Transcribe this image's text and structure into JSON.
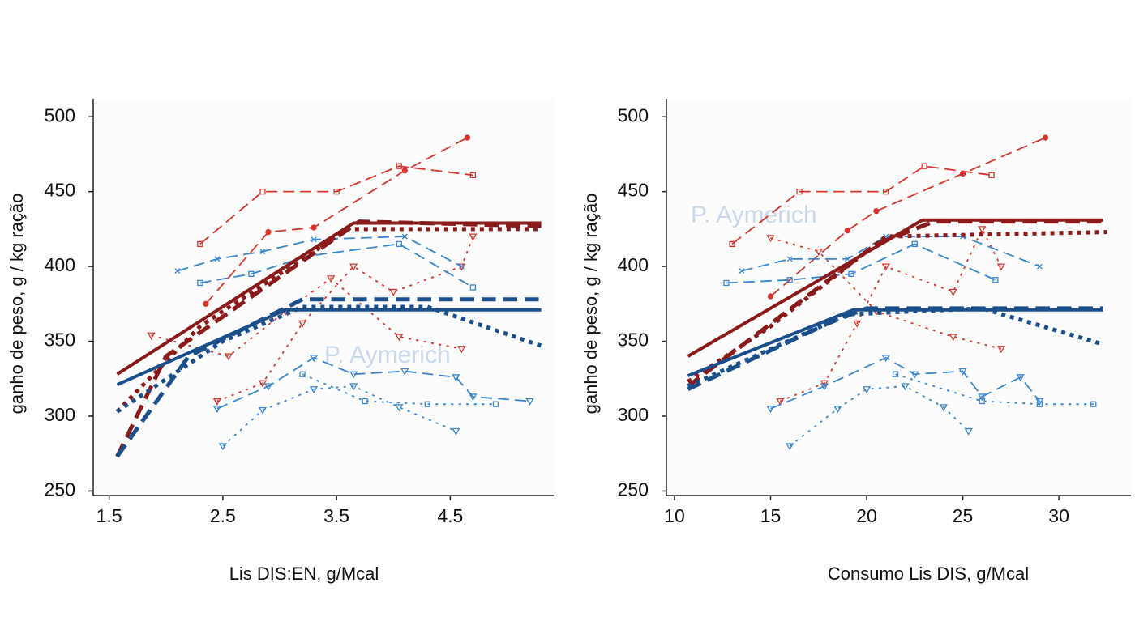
{
  "chart_data": [
    {
      "type": "line",
      "xlabel": "Lis DIS:EN, g/Mcal",
      "ylabel": "ganho de peso, g / kg ração",
      "watermark": "P. Aymerich",
      "xlim": [
        1.36,
        5.41
      ],
      "ylim": [
        247,
        512
      ],
      "xticks": [
        1.5,
        2.5,
        3.5,
        4.5
      ],
      "yticks": [
        250,
        300,
        350,
        400,
        450,
        500
      ],
      "series": [
        {
          "color": "#d9342b",
          "dash": "dashed",
          "width": 1.8,
          "marker": "square",
          "x": [
            2.3,
            2.85,
            3.5,
            4.05,
            4.7
          ],
          "values": [
            415,
            450,
            450,
            467,
            461
          ]
        },
        {
          "color": "#d9342b",
          "dash": "dashed",
          "width": 1.8,
          "marker": "circle",
          "x": [
            2.35,
            2.9,
            3.3,
            4.1,
            4.65
          ],
          "values": [
            375,
            423,
            426,
            464,
            486
          ]
        },
        {
          "color": "#d9342b",
          "dash": "dotted",
          "width": 1.8,
          "marker": "triangle",
          "x": [
            2.45,
            2.85,
            3.2,
            3.65,
            4.0,
            4.6,
            4.7
          ],
          "values": [
            310,
            322,
            362,
            400,
            383,
            400,
            420
          ]
        },
        {
          "color": "#d9342b",
          "dash": "dotted",
          "width": 1.8,
          "marker": "triangle",
          "x": [
            1.87,
            2.55,
            3.05,
            3.45,
            4.05,
            4.6
          ],
          "values": [
            354,
            340,
            370,
            392,
            353,
            345
          ]
        },
        {
          "color": "#3a85d0",
          "dash": "dashed",
          "width": 1.8,
          "marker": "cross",
          "x": [
            2.1,
            2.45,
            2.85,
            3.3,
            4.1,
            4.6
          ],
          "values": [
            397,
            405,
            410,
            418,
            420,
            400
          ]
        },
        {
          "color": "#3a85d0",
          "dash": "dashed",
          "width": 1.8,
          "marker": "square",
          "x": [
            2.3,
            2.75,
            3.25,
            4.05,
            4.7
          ],
          "values": [
            389,
            395,
            407,
            415,
            386
          ]
        },
        {
          "color": "#3a85d0",
          "dash": "dashed",
          "width": 1.8,
          "marker": "triangle",
          "x": [
            2.45,
            2.9,
            3.3,
            3.65,
            4.1,
            4.55,
            4.7,
            5.2
          ],
          "values": [
            305,
            320,
            339,
            328,
            330,
            326,
            313,
            310
          ]
        },
        {
          "color": "#3a85d0",
          "dash": "dotted",
          "width": 1.8,
          "marker": "triangle",
          "x": [
            2.5,
            2.85,
            3.3,
            3.65,
            4.05,
            4.55
          ],
          "values": [
            280,
            304,
            318,
            320,
            306,
            290
          ]
        },
        {
          "color": "#3a85d0",
          "dash": "dotted",
          "width": 1.8,
          "marker": "square",
          "x": [
            3.2,
            3.75,
            4.3,
            4.9
          ],
          "values": [
            328,
            310,
            308,
            308
          ]
        },
        {
          "color": "#8b1a1a",
          "dash": "solid",
          "width": 4,
          "marker": "none",
          "x": [
            1.57,
            3.65,
            5.3
          ],
          "values": [
            328,
            429,
            429
          ]
        },
        {
          "color": "#8b1a1a",
          "dash": "dashed",
          "width": 5,
          "marker": "none",
          "x": [
            1.57,
            2.0,
            3.7,
            5.3
          ],
          "values": [
            273,
            340,
            430,
            427
          ]
        },
        {
          "color": "#8b1a1a",
          "dash": "dotted",
          "width": 5,
          "marker": "none",
          "x": [
            1.57,
            2.3,
            3.6,
            5.3
          ],
          "values": [
            303,
            360,
            425,
            425
          ]
        },
        {
          "color": "#1a4f8b",
          "dash": "solid",
          "width": 4,
          "marker": "none",
          "x": [
            1.57,
            3.05,
            5.3
          ],
          "values": [
            321,
            371,
            371
          ]
        },
        {
          "color": "#1a4f8b",
          "dash": "dashed",
          "width": 5,
          "marker": "none",
          "x": [
            1.57,
            2.2,
            3.2,
            5.3
          ],
          "values": [
            273,
            340,
            378,
            378
          ]
        },
        {
          "color": "#1a4f8b",
          "dash": "dotted",
          "width": 5,
          "marker": "none",
          "x": [
            1.57,
            2.5,
            3.2,
            4.3,
            5.3
          ],
          "values": [
            303,
            350,
            373,
            373,
            347
          ]
        }
      ]
    },
    {
      "type": "line",
      "xlabel": "Consumo Lis DIS, g/Mcal",
      "ylabel": "ganho de peso, g / kg ração",
      "watermark": "P. Aymerich",
      "xlim": [
        9.58,
        33.75
      ],
      "ylim": [
        247,
        512
      ],
      "xticks": [
        10,
        15,
        20,
        25,
        30
      ],
      "yticks": [
        250,
        300,
        350,
        400,
        450,
        500
      ],
      "series": [
        {
          "color": "#d9342b",
          "dash": "dashed",
          "width": 1.8,
          "marker": "square",
          "x": [
            13,
            16.5,
            21,
            23,
            26.5
          ],
          "values": [
            415,
            450,
            450,
            467,
            461
          ]
        },
        {
          "color": "#d9342b",
          "dash": "dashed",
          "width": 1.8,
          "marker": "circle",
          "x": [
            15,
            19,
            20.5,
            25,
            29.3
          ],
          "values": [
            380,
            424,
            437,
            462,
            486
          ]
        },
        {
          "color": "#d9342b",
          "dash": "dotted",
          "width": 1.8,
          "marker": "triangle",
          "x": [
            15.5,
            17.8,
            19.5,
            21,
            24.5,
            26,
            27
          ],
          "values": [
            310,
            322,
            362,
            400,
            383,
            425,
            400
          ]
        },
        {
          "color": "#d9342b",
          "dash": "dotted",
          "width": 1.8,
          "marker": "triangle",
          "x": [
            15,
            17.5,
            20.5,
            24.5,
            27
          ],
          "values": [
            419,
            410,
            370,
            353,
            345
          ]
        },
        {
          "color": "#3a85d0",
          "dash": "dashed",
          "width": 1.8,
          "marker": "cross",
          "x": [
            13.5,
            16,
            19,
            21,
            25,
            29
          ],
          "values": [
            397,
            405,
            405,
            420,
            420,
            400
          ]
        },
        {
          "color": "#3a85d0",
          "dash": "dashed",
          "width": 1.8,
          "marker": "square",
          "x": [
            12.7,
            16,
            19.2,
            22.5,
            26.7
          ],
          "values": [
            389,
            391,
            395,
            415,
            391
          ]
        },
        {
          "color": "#3a85d0",
          "dash": "dashed",
          "width": 1.8,
          "marker": "triangle",
          "x": [
            15,
            17.8,
            21,
            22.5,
            25,
            26,
            28,
            29
          ],
          "values": [
            305,
            320,
            339,
            328,
            330,
            313,
            326,
            310
          ]
        },
        {
          "color": "#3a85d0",
          "dash": "dotted",
          "width": 1.8,
          "marker": "triangle",
          "x": [
            16,
            18.5,
            20,
            22,
            24,
            25.3
          ],
          "values": [
            280,
            305,
            318,
            320,
            306,
            290
          ]
        },
        {
          "color": "#3a85d0",
          "dash": "dotted",
          "width": 1.8,
          "marker": "square",
          "x": [
            21.5,
            26,
            29,
            31.8
          ],
          "values": [
            328,
            310,
            308,
            308
          ]
        },
        {
          "color": "#8b1a1a",
          "dash": "solid",
          "width": 4,
          "marker": "none",
          "x": [
            10.7,
            22.9,
            32.3
          ],
          "values": [
            340,
            431,
            431
          ]
        },
        {
          "color": "#8b1a1a",
          "dash": "dashed",
          "width": 5,
          "marker": "none",
          "x": [
            10.7,
            20.5,
            23.5,
            32.5
          ],
          "values": [
            320,
            415,
            430,
            430
          ]
        },
        {
          "color": "#8b1a1a",
          "dash": "dotted",
          "width": 5,
          "marker": "none",
          "x": [
            10.7,
            15,
            21,
            32.5
          ],
          "values": [
            323,
            360,
            420,
            423
          ]
        },
        {
          "color": "#1a4f8b",
          "dash": "solid",
          "width": 4,
          "marker": "none",
          "x": [
            10.7,
            19.3,
            32.3
          ],
          "values": [
            327,
            371,
            371
          ]
        },
        {
          "color": "#1a4f8b",
          "dash": "dashed",
          "width": 5,
          "marker": "none",
          "x": [
            10.7,
            18,
            20,
            32.3
          ],
          "values": [
            318,
            362,
            372,
            372
          ]
        },
        {
          "color": "#1a4f8b",
          "dash": "dotted",
          "width": 5,
          "marker": "none",
          "x": [
            10.7,
            19,
            26,
            32.3
          ],
          "values": [
            320,
            368,
            372,
            348
          ]
        }
      ]
    }
  ]
}
